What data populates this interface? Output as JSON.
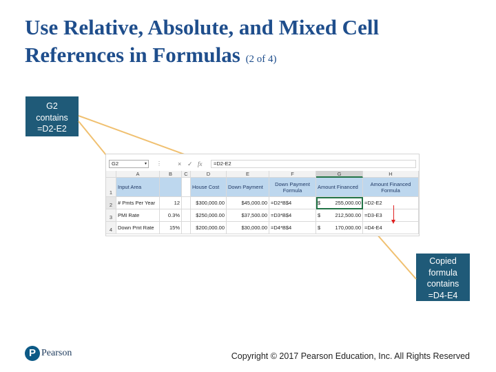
{
  "slide": {
    "title_line1": "Use Relative, Absolute, and Mixed Cell",
    "title_line2": "References in Formulas",
    "title_part": "(2 of 4)",
    "copyright": "Copyright © 2017 Pearson Education, Inc. All Rights Reserved",
    "logo_text": "Pearson",
    "logo_mark": "P"
  },
  "callouts": {
    "top": [
      "G2",
      "contains",
      "=D2-E2"
    ],
    "bottom": [
      "Copied",
      "formula",
      "contains",
      "=D4-E4"
    ],
    "color": "#1f5a78"
  },
  "spreadsheet": {
    "name_box": "G2",
    "name_box_arrow": "▾",
    "formula_bar_dots": "⋮",
    "cancel_icon": "×",
    "enter_icon": "✓",
    "fx_label": "fx",
    "formula": "=D2-E2",
    "columns": [
      "A",
      "B",
      "C",
      "D",
      "E",
      "F",
      "G",
      "H"
    ],
    "rows": [
      "1",
      "2",
      "3",
      "4"
    ],
    "header_row": {
      "A": "Input Area",
      "B": "",
      "C": "",
      "D": "House Cost",
      "E": "Down Payment",
      "F": "Down Payment Formula",
      "G": "Amount Financed",
      "H": "Amount Financed Formula"
    },
    "data_rows": [
      {
        "A": "# Pmts Per Year",
        "B": "12",
        "D": "$300,000.00",
        "E": "$45,000.00",
        "F": "=D2*B$4",
        "G_cur": "$",
        "G_amt": "255,000.00",
        "H": "=D2-E2"
      },
      {
        "A": "PMI Rate",
        "B": "0.3%",
        "D": "$250,000.00",
        "E": "$37,500.00",
        "F": "=D3*B$4",
        "G_cur": "$",
        "G_amt": "212,500.00",
        "H": "=D3-E3"
      },
      {
        "A": "Down Pmt Rate",
        "B": "15%",
        "D": "$200,000.00",
        "E": "$30,000.00",
        "F": "=D4*B$4",
        "G_cur": "$",
        "G_amt": "170,000.00",
        "H": "=D4-E4"
      }
    ],
    "header_fill": "#bdd7ee",
    "selection_color": "#217346",
    "arrow_color": "#e02020"
  }
}
